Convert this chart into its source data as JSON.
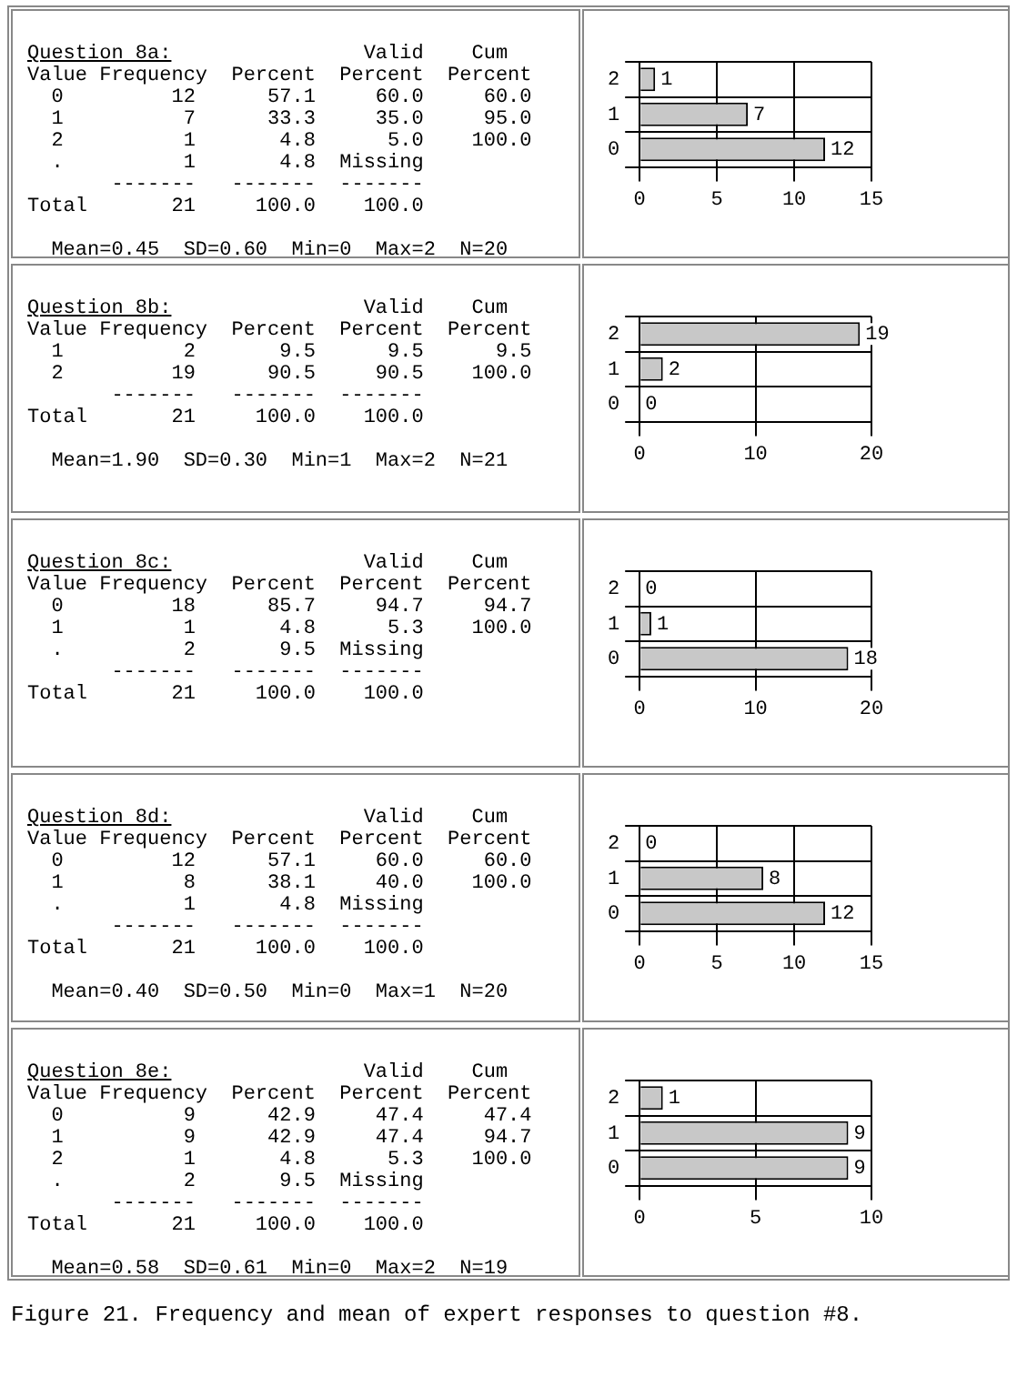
{
  "chart_data": [
    {
      "type": "other",
      "title": "Question 8a:",
      "subtitle": "  Mean=0.45  SD=0.60  Min=0  Max=2  N=20",
      "annotations": [
        "                Valid    Cum",
        "Value Frequency  Percent  Percent  Percent",
        "  0         12      57.1     60.0     60.0",
        "  1          7      33.3     35.0     95.0",
        "  2          1       4.8      5.0    100.0",
        "  .          1       4.8  Missing",
        "       -------   -------  -------",
        "Total       21     100.0    100.0"
      ]
    },
    {
      "type": "bar",
      "orientation": "horizontal",
      "categories": [
        "2",
        "1",
        "0"
      ],
      "values": [
        1,
        7,
        12
      ],
      "color": "#c8c8c8",
      "xlim": [
        0,
        15
      ],
      "xticks": [
        0,
        5,
        10,
        15
      ],
      "grid": true,
      "data_labels": true
    },
    {
      "type": "other",
      "title": "Question 8b:",
      "subtitle": "  Mean=1.90  SD=0.30  Min=1  Max=2  N=21",
      "annotations": [
        "                Valid    Cum",
        "Value Frequency  Percent  Percent  Percent",
        "  1          2       9.5      9.5      9.5",
        "  2         19      90.5     90.5    100.0",
        "       -------   -------  -------",
        "Total       21     100.0    100.0"
      ]
    },
    {
      "type": "bar",
      "orientation": "horizontal",
      "categories": [
        "2",
        "1",
        "0"
      ],
      "values": [
        19,
        2,
        0
      ],
      "color": "#c8c8c8",
      "xlim": [
        0,
        20
      ],
      "xticks": [
        0,
        10,
        20
      ],
      "grid": true,
      "data_labels": true
    },
    {
      "type": "other",
      "title": "Question 8c:",
      "annotations": [
        "                Valid    Cum",
        "Value Frequency  Percent  Percent  Percent",
        "  0         18      85.7     94.7     94.7",
        "  1          1       4.8      5.3    100.0",
        "  .          2       9.5  Missing",
        "       -------   -------  -------",
        "Total       21     100.0    100.0"
      ]
    },
    {
      "type": "bar",
      "orientation": "horizontal",
      "categories": [
        "2",
        "1",
        "0"
      ],
      "values": [
        0,
        1,
        18
      ],
      "color": "#c8c8c8",
      "xlim": [
        0,
        20
      ],
      "xticks": [
        0,
        10,
        20
      ],
      "grid": true,
      "data_labels": true
    },
    {
      "type": "other",
      "title": "Question 8d:",
      "subtitle": "  Mean=0.40  SD=0.50  Min=0  Max=1  N=20",
      "annotations": [
        "                Valid    Cum",
        "Value Frequency  Percent  Percent  Percent",
        "  0         12      57.1     60.0     60.0",
        "  1          8      38.1     40.0    100.0",
        "  .          1       4.8  Missing",
        "       -------   -------  -------",
        "Total       21     100.0    100.0"
      ]
    },
    {
      "type": "bar",
      "orientation": "horizontal",
      "categories": [
        "2",
        "1",
        "0"
      ],
      "values": [
        0,
        8,
        12
      ],
      "color": "#c8c8c8",
      "xlim": [
        0,
        15
      ],
      "xticks": [
        0,
        5,
        10,
        15
      ],
      "grid": true,
      "data_labels": true
    },
    {
      "type": "other",
      "title": "Question 8e:",
      "subtitle": "  Mean=0.58  SD=0.61  Min=0  Max=2  N=19",
      "annotations": [
        "                Valid    Cum",
        "Value Frequency  Percent  Percent  Percent",
        "  0          9      42.9     47.4     47.4",
        "  1          9      42.9     47.4     94.7",
        "  2          1       4.8      5.3    100.0",
        "  .          2       9.5  Missing",
        "       -------   -------  -------",
        "Total       21     100.0    100.0"
      ]
    },
    {
      "type": "bar",
      "orientation": "horizontal",
      "categories": [
        "2",
        "1",
        "0"
      ],
      "values": [
        1,
        9,
        9
      ],
      "color": "#c8c8c8",
      "xlim": [
        0,
        10
      ],
      "xticks": [
        0,
        5,
        10
      ],
      "grid": true,
      "data_labels": true
    },
    {
      "type": "other",
      "annotations": [
        "Figure 21. Frequency and mean of expert responses to question #8."
      ]
    }
  ]
}
